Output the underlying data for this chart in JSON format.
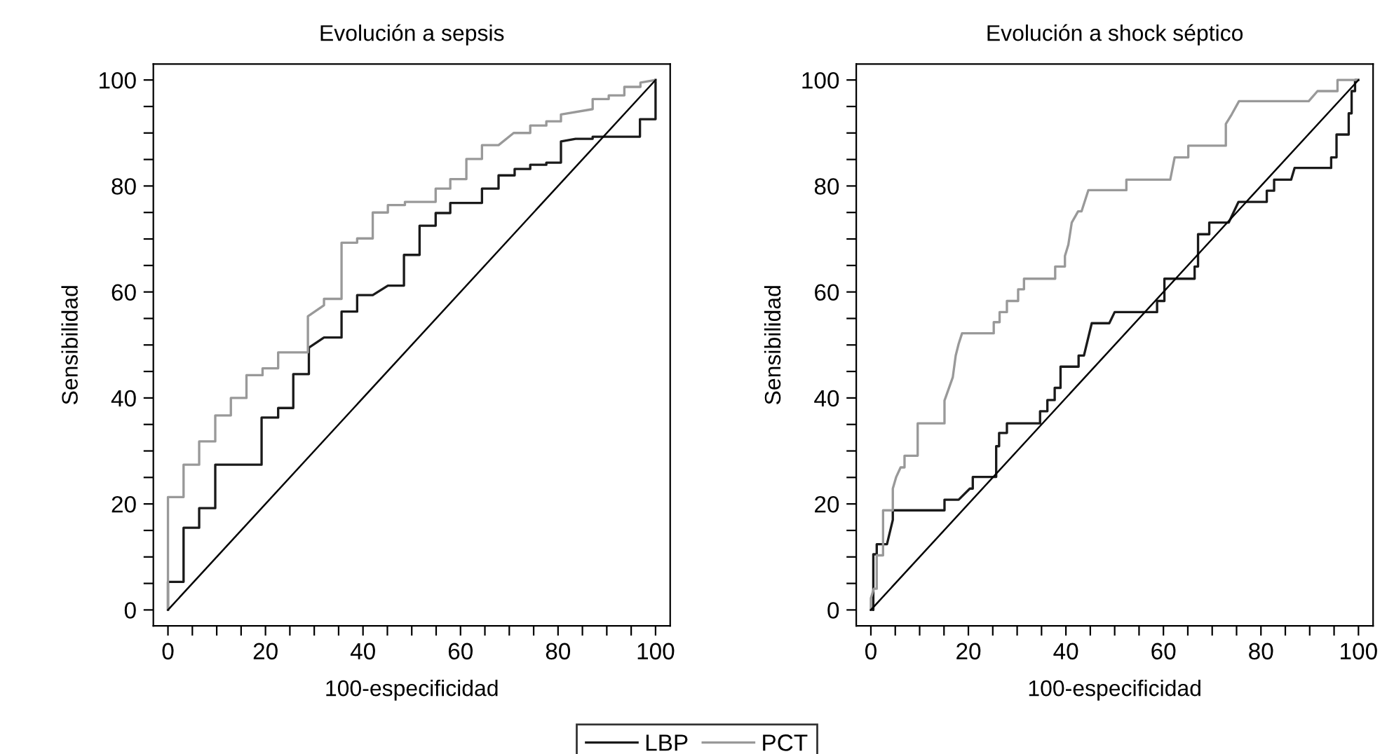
{
  "chart_data": [
    {
      "type": "line",
      "title": "Evolución a sepsis",
      "xlabel": "100-especificidad",
      "ylabel": "Sensibilidad",
      "xlim": [
        -3,
        103
      ],
      "ylim": [
        -3,
        103
      ],
      "xticks": [
        0,
        {
          "value": 5,
          "label": null
        },
        {
          "value": 10,
          "label": null
        },
        {
          "value": 15,
          "label": null
        },
        20,
        {
          "value": 25,
          "label": null
        },
        {
          "value": 30,
          "label": null
        },
        {
          "value": 35,
          "label": null
        },
        40,
        {
          "value": 45,
          "label": null
        },
        {
          "value": 50,
          "label": null
        },
        {
          "value": 55,
          "label": null
        },
        60,
        {
          "value": 65,
          "label": null
        },
        {
          "value": 70,
          "label": null
        },
        {
          "value": 75,
          "label": null
        },
        80,
        {
          "value": 85,
          "label": null
        },
        {
          "value": 90,
          "label": null
        },
        {
          "value": 95,
          "label": null
        },
        100
      ],
      "yticks": [
        0,
        {
          "value": 5,
          "label": null
        },
        {
          "value": 10,
          "label": null
        },
        {
          "value": 15,
          "label": null
        },
        20,
        {
          "value": 25,
          "label": null
        },
        {
          "value": 30,
          "label": null
        },
        {
          "value": 35,
          "label": null
        },
        40,
        {
          "value": 45,
          "label": null
        },
        {
          "value": 50,
          "label": null
        },
        {
          "value": 55,
          "label": null
        },
        60,
        {
          "value": 65,
          "label": null
        },
        {
          "value": 70,
          "label": null
        },
        {
          "value": 75,
          "label": null
        },
        80,
        {
          "value": 85,
          "label": null
        },
        {
          "value": 90,
          "label": null
        },
        {
          "value": 95,
          "label": null
        },
        100
      ],
      "grid": false,
      "legend": "bottom",
      "series": [
        {
          "name": "LBP",
          "color": "#1a1a1a",
          "x": [
            0,
            0,
            3.2,
            3.2,
            6.4,
            6.4,
            9.7,
            9.7,
            19.2,
            19.2,
            22.6,
            22.6,
            25.7,
            25.7,
            28.9,
            28.9,
            32,
            35.6,
            35.6,
            38.8,
            38.8,
            42,
            45.1,
            48.4,
            48.4,
            51.6,
            51.6,
            54.9,
            54.9,
            57.9,
            57.9,
            64.4,
            64.4,
            67.8,
            67.8,
            71.1,
            71.1,
            74.3,
            74.3,
            77.6,
            77.6,
            80.6,
            80.6,
            83.6,
            87.1,
            87.1,
            96.8,
            96.8,
            100,
            100
          ],
          "values": [
            0,
            5.3,
            5.3,
            15.5,
            15.5,
            19.2,
            19.2,
            27.4,
            27.4,
            36.3,
            36.3,
            38.1,
            38.1,
            44.5,
            44.5,
            49.5,
            51.4,
            51.4,
            56.3,
            56.3,
            59.4,
            59.4,
            61.2,
            61.2,
            67,
            67,
            72.5,
            72.5,
            74.9,
            74.9,
            76.8,
            76.8,
            79.5,
            79.5,
            82,
            82,
            83.2,
            83.2,
            84,
            84,
            84.4,
            84.4,
            88.4,
            88.9,
            88.9,
            89.3,
            89.3,
            92.6,
            92.6,
            100
          ]
        },
        {
          "name": "PCT",
          "color": "#999999",
          "x": [
            0,
            0,
            3.2,
            3.2,
            6.4,
            6.4,
            9.7,
            9.7,
            12.9,
            12.9,
            16.1,
            16.1,
            19.4,
            19.4,
            22.6,
            22.6,
            28.7,
            28.7,
            32,
            32,
            35.6,
            35.6,
            38.8,
            38.8,
            42,
            42,
            45.1,
            45.1,
            48.6,
            48.6,
            54.9,
            54.9,
            57.9,
            57.9,
            61.2,
            61.2,
            64.4,
            64.4,
            67.8,
            70.9,
            74.3,
            74.3,
            77.6,
            77.6,
            80.6,
            80.6,
            87.1,
            87.1,
            90.4,
            90.4,
            93.6,
            93.6,
            96.9,
            96.9,
            100
          ],
          "values": [
            0,
            21.3,
            21.3,
            27.4,
            27.4,
            31.8,
            31.8,
            36.7,
            36.7,
            40,
            40,
            44.3,
            44.3,
            45.6,
            45.6,
            48.6,
            48.6,
            55.4,
            57.5,
            58.7,
            58.7,
            69.3,
            69.3,
            70.1,
            70.1,
            75,
            75,
            76.4,
            76.4,
            77,
            77,
            79.5,
            79.5,
            81.3,
            81.3,
            85.1,
            85.1,
            87.7,
            87.7,
            90,
            90,
            91.4,
            91.4,
            92.2,
            92.2,
            93.5,
            94.5,
            96.4,
            96.4,
            97.1,
            97.1,
            98.7,
            98.7,
            99.5,
            100
          ]
        },
        {
          "color": "#000000",
          "x": [
            0,
            100
          ],
          "values": [
            0,
            100
          ]
        }
      ]
    },
    {
      "type": "line",
      "title": "Evolución a shock séptico",
      "xlabel": "100-especificidad",
      "ylabel": "Sensibilidad",
      "xlim": [
        -3,
        103
      ],
      "ylim": [
        -3,
        103
      ],
      "xticks": [
        0,
        {
          "value": 5,
          "label": null
        },
        {
          "value": 10,
          "label": null
        },
        {
          "value": 15,
          "label": null
        },
        20,
        {
          "value": 25,
          "label": null
        },
        {
          "value": 30,
          "label": null
        },
        {
          "value": 35,
          "label": null
        },
        40,
        {
          "value": 45,
          "label": null
        },
        {
          "value": 50,
          "label": null
        },
        {
          "value": 55,
          "label": null
        },
        60,
        {
          "value": 65,
          "label": null
        },
        {
          "value": 70,
          "label": null
        },
        {
          "value": 75,
          "label": null
        },
        80,
        {
          "value": 85,
          "label": null
        },
        {
          "value": 90,
          "label": null
        },
        {
          "value": 95,
          "label": null
        },
        100
      ],
      "yticks": [
        0,
        {
          "value": 5,
          "label": null
        },
        {
          "value": 10,
          "label": null
        },
        {
          "value": 15,
          "label": null
        },
        20,
        {
          "value": 25,
          "label": null
        },
        {
          "value": 30,
          "label": null
        },
        {
          "value": 35,
          "label": null
        },
        40,
        {
          "value": 45,
          "label": null
        },
        {
          "value": 50,
          "label": null
        },
        {
          "value": 55,
          "label": null
        },
        60,
        {
          "value": 65,
          "label": null
        },
        {
          "value": 70,
          "label": null
        },
        {
          "value": 75,
          "label": null
        },
        80,
        {
          "value": 85,
          "label": null
        },
        {
          "value": 90,
          "label": null
        },
        {
          "value": 95,
          "label": null
        },
        100
      ],
      "grid": false,
      "legend": "bottom",
      "series": [
        {
          "name": "LBP",
          "color": "#1a1a1a",
          "x": [
            0,
            0.5,
            0.5,
            1.2,
            1.2,
            3.3,
            4.5,
            4.5,
            15.1,
            15.1,
            18,
            20.3,
            20.9,
            20.9,
            25.7,
            25.7,
            26.3,
            26.3,
            27.9,
            27.9,
            34.7,
            34.7,
            36.2,
            36.2,
            37.7,
            37.7,
            38.9,
            38.9,
            42.6,
            42.6,
            43.7,
            45.3,
            48.9,
            50,
            58.7,
            58.7,
            60.2,
            60.2,
            66.4,
            66.4,
            67.1,
            67.1,
            69.4,
            69.4,
            73.4,
            75.4,
            81.2,
            81.2,
            82.7,
            82.7,
            86.2,
            86.9,
            94.4,
            94.4,
            95.5,
            95.5,
            98,
            98,
            98.6,
            98.6,
            99.3,
            99.3,
            100
          ],
          "values": [
            0,
            0,
            10.5,
            10.5,
            12.4,
            12.4,
            17,
            18.8,
            18.8,
            20.8,
            20.8,
            22.9,
            22.9,
            25.1,
            25.1,
            30.9,
            30.9,
            33.4,
            33.4,
            35.2,
            35.2,
            37.5,
            37.5,
            39.6,
            39.6,
            41.9,
            41.9,
            45.9,
            45.9,
            48,
            48,
            54.1,
            54.1,
            56.2,
            56.2,
            58.3,
            58.3,
            62.5,
            62.5,
            64.8,
            64.8,
            70.9,
            70.9,
            73.1,
            73.1,
            77,
            77,
            79.1,
            79.1,
            81.2,
            81.2,
            83.4,
            83.4,
            85.4,
            85.4,
            89.7,
            89.7,
            93.7,
            93.7,
            97.9,
            97.9,
            100,
            100
          ]
        },
        {
          "name": "PCT",
          "color": "#999999",
          "x": [
            0,
            0,
            0.6,
            1.2,
            1.2,
            2.5,
            2.5,
            4.5,
            4.5,
            5.2,
            6.1,
            6.9,
            6.9,
            9.6,
            9.6,
            15.1,
            15.1,
            16.8,
            17.4,
            18,
            18.7,
            25.2,
            25.2,
            26.4,
            26.4,
            27.9,
            27.9,
            30.2,
            30.2,
            31.4,
            31.4,
            37.8,
            37.8,
            39.8,
            39.8,
            40.5,
            41.2,
            42.5,
            43.2,
            44.6,
            52.4,
            52.4,
            61.4,
            62.3,
            65.1,
            65.1,
            72.8,
            72.8,
            74,
            75.5,
            89.8,
            91.6,
            95.7,
            95.7,
            100
          ],
          "values": [
            0,
            2.2,
            4,
            4,
            10.3,
            10.3,
            18.8,
            18.8,
            22.9,
            25.1,
            26.9,
            26.9,
            29.1,
            29.1,
            35.2,
            35.2,
            39.5,
            43.9,
            48,
            50.2,
            52.2,
            52.2,
            54.3,
            54.3,
            56.2,
            56.2,
            58.3,
            58.3,
            60.5,
            60.5,
            62.5,
            62.5,
            64.8,
            64.8,
            66.8,
            68.9,
            73.1,
            75.2,
            75.2,
            79.2,
            79.2,
            81.2,
            81.2,
            85.4,
            85.4,
            87.6,
            87.6,
            91.7,
            93.5,
            96,
            96,
            97.9,
            97.9,
            100,
            100
          ]
        },
        {
          "color": "#000000",
          "x": [
            0,
            100
          ],
          "values": [
            0,
            100
          ]
        }
      ]
    }
  ]
}
